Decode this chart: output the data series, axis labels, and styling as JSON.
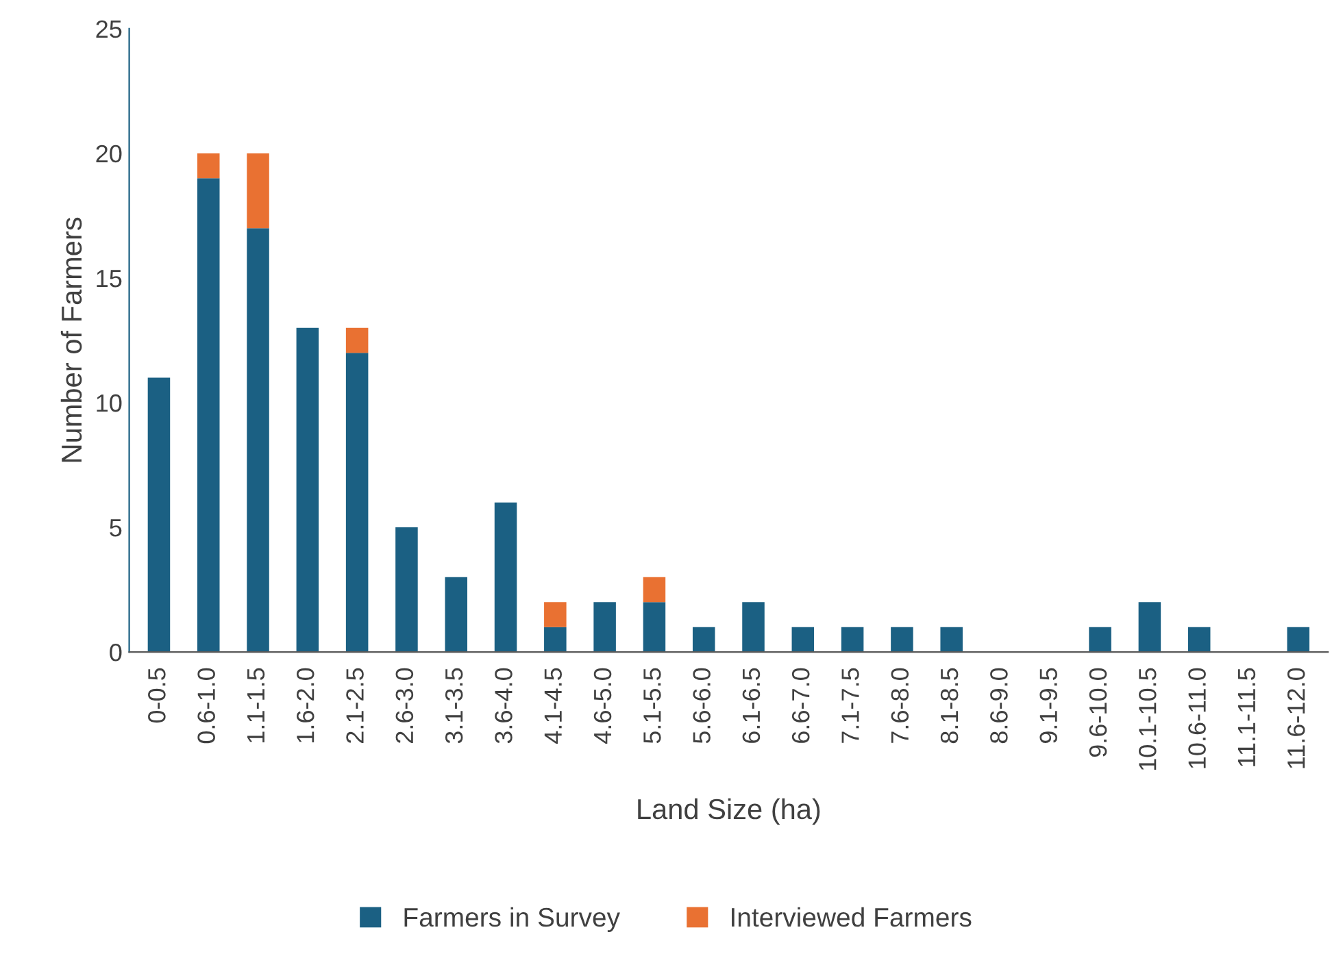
{
  "chart_data": {
    "type": "bar",
    "stacked": true,
    "xlabel": "Land Size (ha)",
    "ylabel": "Number of Farmers",
    "categories": [
      "0-0.5",
      "0.6-1.0",
      "1.1-1.5",
      "1.6-2.0",
      "2.1-2.5",
      "2.6-3.0",
      "3.1-3.5",
      "3.6-4.0",
      "4.1-4.5",
      "4.6-5.0",
      "5.1-5.5",
      "5.6-6.0",
      "6.1-6.5",
      "6.6-7.0",
      "7.1-7.5",
      "7.6-8.0",
      "8.1-8.5",
      "8.6-9.0",
      "9.1-9.5",
      "9.6-10.0",
      "10.1-10.5",
      "10.6-11.0",
      "11.1-11.5",
      "11.6-12.0"
    ],
    "series": [
      {
        "name": "Farmers in Survey",
        "color": "#1b6083",
        "values": [
          11,
          19,
          17,
          13,
          12,
          5,
          3,
          6,
          1,
          2,
          2,
          1,
          2,
          1,
          1,
          1,
          1,
          0,
          0,
          1,
          2,
          1,
          0,
          1
        ]
      },
      {
        "name": "Interviewed Farmers",
        "color": "#e97132",
        "values": [
          0,
          1,
          3,
          0,
          1,
          0,
          0,
          0,
          1,
          0,
          1,
          0,
          0,
          0,
          0,
          0,
          0,
          0,
          0,
          0,
          0,
          0,
          0,
          0
        ]
      }
    ],
    "ylim": [
      0,
      25
    ],
    "yticks": [
      0,
      5,
      10,
      15,
      20,
      25
    ],
    "grid": false,
    "legend": "bottom"
  }
}
